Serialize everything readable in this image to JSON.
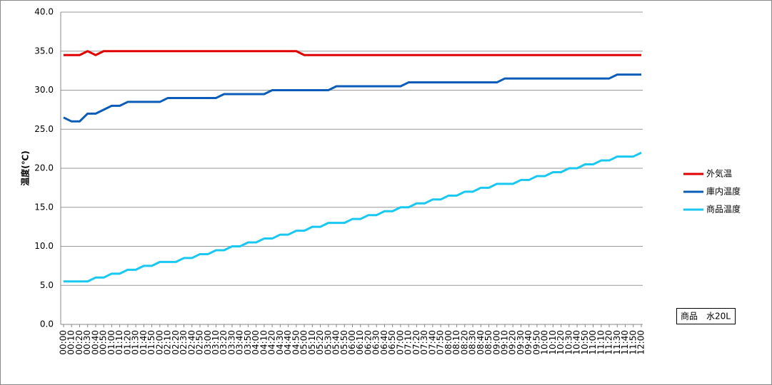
{
  "chart_data": {
    "type": "line",
    "y_label": "温度(℃)",
    "annotation": "商品　水20L",
    "categories": [
      "00:00",
      "00:10",
      "00:20",
      "00:30",
      "00:40",
      "00:50",
      "01:00",
      "01:10",
      "01:20",
      "01:30",
      "01:40",
      "01:50",
      "02:00",
      "02:10",
      "02:20",
      "02:30",
      "02:40",
      "02:50",
      "03:00",
      "03:10",
      "03:20",
      "03:30",
      "03:40",
      "03:50",
      "04:00",
      "04:10",
      "04:20",
      "04:30",
      "04:40",
      "04:50",
      "05:00",
      "05:10",
      "05:20",
      "05:30",
      "05:40",
      "05:50",
      "06:00",
      "06:10",
      "06:20",
      "06:30",
      "06:40",
      "06:50",
      "07:00",
      "07:10",
      "07:20",
      "07:30",
      "07:40",
      "07:50",
      "08:00",
      "08:10",
      "08:20",
      "08:30",
      "08:40",
      "08:50",
      "09:00",
      "09:10",
      "09:20",
      "09:30",
      "09:40",
      "09:50",
      "10:00",
      "10:10",
      "10:20",
      "10:30",
      "10:40",
      "10:50",
      "11:00",
      "11:10",
      "11:20",
      "11:30",
      "11:40",
      "11:50",
      "12:00"
    ],
    "series": [
      {
        "name": "外気温",
        "color": "#e00000",
        "values": [
          34.5,
          34.5,
          34.5,
          35,
          34.5,
          35,
          35,
          35,
          35,
          35,
          35,
          35,
          35,
          35,
          35,
          35,
          35,
          35,
          35,
          35,
          35,
          35,
          35,
          35,
          35,
          35,
          35,
          35,
          35,
          35,
          34.5,
          34.5,
          34.5,
          34.5,
          34.5,
          34.5,
          34.5,
          34.5,
          34.5,
          34.5,
          34.5,
          34.5,
          34.5,
          34.5,
          34.5,
          34.5,
          34.5,
          34.5,
          34.5,
          34.5,
          34.5,
          34.5,
          34.5,
          34.5,
          34.5,
          34.5,
          34.5,
          34.5,
          34.5,
          34.5,
          34.5,
          34.5,
          34.5,
          34.5,
          34.5,
          34.5,
          34.5,
          34.5,
          34.5,
          34.5,
          34.5,
          34.5,
          34.5
        ]
      },
      {
        "name": "庫内温度",
        "color": "#0a5cb8",
        "values": [
          26.5,
          26,
          26,
          27,
          27,
          27.5,
          28,
          28,
          28.5,
          28.5,
          28.5,
          28.5,
          28.5,
          29,
          29,
          29,
          29,
          29,
          29,
          29,
          29.5,
          29.5,
          29.5,
          29.5,
          29.5,
          29.5,
          30,
          30,
          30,
          30,
          30,
          30,
          30,
          30,
          30.5,
          30.5,
          30.5,
          30.5,
          30.5,
          30.5,
          30.5,
          30.5,
          30.5,
          31,
          31,
          31,
          31,
          31,
          31,
          31,
          31,
          31,
          31,
          31,
          31,
          31.5,
          31.5,
          31.5,
          31.5,
          31.5,
          31.5,
          31.5,
          31.5,
          31.5,
          31.5,
          31.5,
          31.5,
          31.5,
          31.5,
          32,
          32,
          32,
          32
        ]
      },
      {
        "name": "商品温度",
        "color": "#18c8f0",
        "values": [
          5.5,
          5.5,
          5.5,
          5.5,
          6,
          6,
          6.5,
          6.5,
          7,
          7,
          7.5,
          7.5,
          8,
          8,
          8,
          8.5,
          8.5,
          9,
          9,
          9.5,
          9.5,
          10,
          10,
          10.5,
          10.5,
          11,
          11,
          11.5,
          11.5,
          12,
          12,
          12.5,
          12.5,
          13,
          13,
          13,
          13.5,
          13.5,
          14,
          14,
          14.5,
          14.5,
          15,
          15,
          15.5,
          15.5,
          16,
          16,
          16.5,
          16.5,
          17,
          17,
          17.5,
          17.5,
          18,
          18,
          18,
          18.5,
          18.5,
          19,
          19,
          19.5,
          19.5,
          20,
          20,
          20.5,
          20.5,
          21,
          21,
          21.5,
          21.5,
          21.5,
          22
        ]
      }
    ],
    "ylim": [
      0,
      40
    ],
    "yticks": [
      {
        "value": 0,
        "label": "0.0"
      },
      {
        "value": 5,
        "label": "5.0"
      },
      {
        "value": 10,
        "label": "10.0"
      },
      {
        "value": 15,
        "label": "15.0"
      },
      {
        "value": 20,
        "label": "20.0"
      },
      {
        "value": 25,
        "label": "25.0"
      },
      {
        "value": 30,
        "label": "30.0"
      },
      {
        "value": 35,
        "label": "35.0"
      },
      {
        "value": 40,
        "label": "40.0"
      }
    ],
    "grid": true,
    "legend": "right"
  }
}
